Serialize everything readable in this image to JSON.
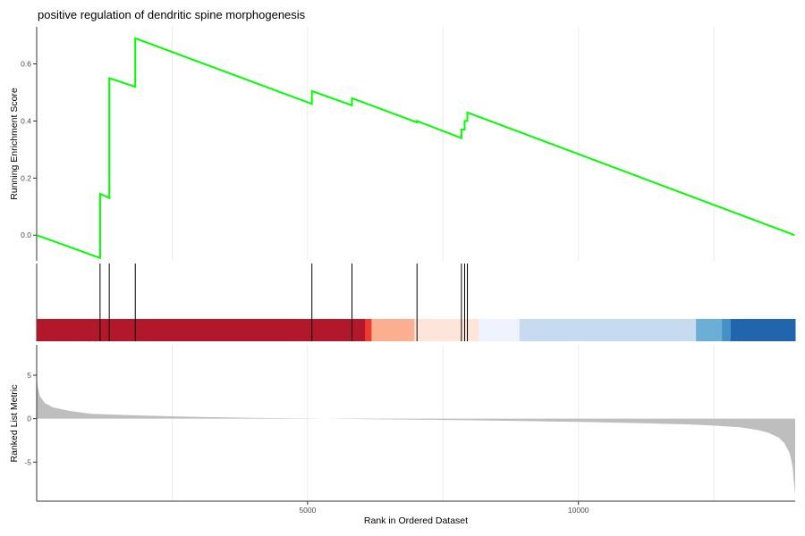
{
  "chart_data": {
    "type": "line",
    "title": "positive regulation of dendritic spine morphogenesis",
    "xlabel": "Rank in Ordered Dataset",
    "x_ticks": [
      5000,
      10000
    ],
    "x_tick_labels": [
      "5000",
      "10000"
    ],
    "xlim": [
      0,
      14000
    ],
    "grid": "vertical gridlines at 2500-step intervals",
    "panels": {
      "running_score": {
        "ylabel": "Running Enrichment Score",
        "ylim": [
          -0.09,
          0.73
        ],
        "y_ticks": [
          0.0,
          0.2,
          0.4,
          0.6
        ],
        "y_tick_labels": [
          "0.0",
          "0.2",
          "0.4",
          "0.6"
        ],
        "line_color": "#00ff00",
        "x": [
          0,
          1170,
          1170,
          1340,
          1340,
          1820,
          1820,
          5080,
          5080,
          5820,
          5820,
          7020,
          7020,
          7840,
          7840,
          7900,
          7900,
          7950,
          7950,
          13990
        ],
        "y": [
          0.0,
          -0.08,
          0.145,
          0.13,
          0.55,
          0.52,
          0.69,
          0.46,
          0.505,
          0.455,
          0.48,
          0.395,
          0.4,
          0.34,
          0.37,
          0.37,
          0.4,
          0.4,
          0.43,
          0.0
        ]
      },
      "hits": {
        "positions": [
          1170,
          1340,
          1820,
          5080,
          5820,
          7020,
          7840,
          7900,
          7950
        ],
        "color_bar": [
          {
            "start": 0,
            "end": 6060,
            "color": "#b2182b"
          },
          {
            "start": 6060,
            "end": 6180,
            "color": "#ef3b2c"
          },
          {
            "start": 6180,
            "end": 6970,
            "color": "#fcae91"
          },
          {
            "start": 6970,
            "end": 8160,
            "color": "#fee5d9"
          },
          {
            "start": 8160,
            "end": 8910,
            "color": "#eff3ff"
          },
          {
            "start": 8910,
            "end": 12170,
            "color": "#c6dbef"
          },
          {
            "start": 12170,
            "end": 12650,
            "color": "#6baed6"
          },
          {
            "start": 12650,
            "end": 12810,
            "color": "#4292c6"
          },
          {
            "start": 12810,
            "end": 14000,
            "color": "#2166ac"
          }
        ]
      },
      "ranked_metric": {
        "ylabel": "Ranked List Metric",
        "ylim": [
          -9.5,
          8.5
        ],
        "y_ticks": [
          5,
          0,
          -5
        ],
        "y_tick_labels": [
          "5",
          "0",
          "-5"
        ],
        "fill_color": "#bebebe",
        "x": [
          0,
          20,
          60,
          150,
          300,
          600,
          1000,
          2000,
          3000,
          4000,
          5000,
          6000,
          7000,
          8000,
          9000,
          10000,
          11000,
          12000,
          12500,
          13000,
          13300,
          13500,
          13700,
          13800,
          13900,
          13950,
          14000
        ],
        "y": [
          4.6,
          3.7,
          2.6,
          1.8,
          1.3,
          0.9,
          0.55,
          0.35,
          0.2,
          0.1,
          0.02,
          -0.05,
          -0.12,
          -0.18,
          -0.28,
          -0.38,
          -0.5,
          -0.65,
          -0.8,
          -1.0,
          -1.3,
          -1.6,
          -2.2,
          -2.8,
          -4.0,
          -5.5,
          -8.8
        ]
      }
    }
  }
}
